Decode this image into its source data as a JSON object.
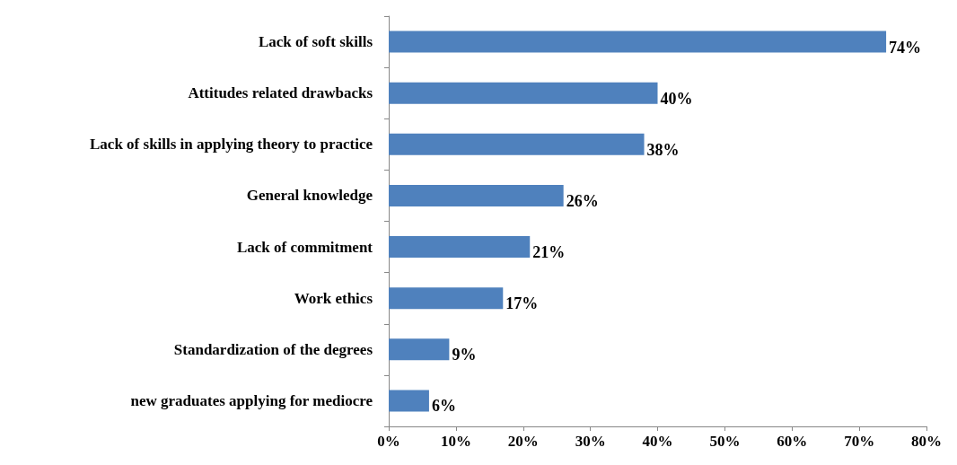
{
  "chart_data": {
    "type": "bar",
    "orientation": "horizontal",
    "categories": [
      "Lack of soft skills",
      "Attitudes related drawbacks",
      "Lack of skills in applying theory to practice",
      "General knowledge",
      "Lack of commitment",
      "Work ethics",
      "Standardization of the degrees",
      "new graduates applying for mediocre"
    ],
    "values": [
      74,
      40,
      38,
      26,
      21,
      17,
      9,
      6
    ],
    "value_labels": [
      "74%",
      "40%",
      "38%",
      "26%",
      "21%",
      "17%",
      "9%",
      "6%"
    ],
    "color": "#4f81bd",
    "xlim": [
      0,
      80
    ],
    "xticks": [
      {
        "value": 0,
        "label": "0%"
      },
      {
        "value": 10,
        "label": "10%"
      },
      {
        "value": 20,
        "label": "20%"
      },
      {
        "value": 30,
        "label": "30%"
      },
      {
        "value": 40,
        "label": "40%"
      },
      {
        "value": 50,
        "label": "50%"
      },
      {
        "value": 60,
        "label": "60%"
      },
      {
        "value": 70,
        "label": "70%"
      },
      {
        "value": 80,
        "label": "80%"
      }
    ],
    "grid": false
  }
}
